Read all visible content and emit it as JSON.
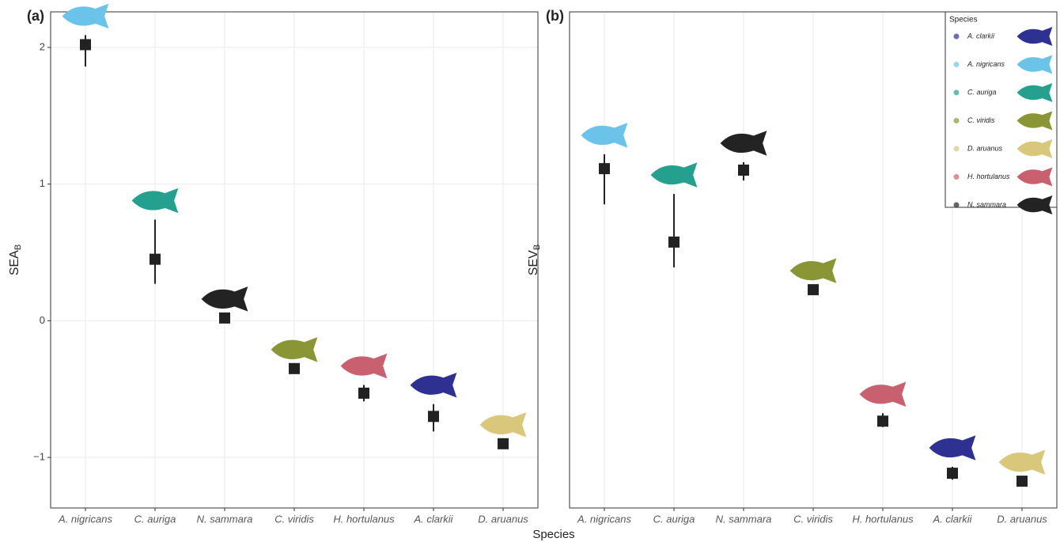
{
  "figure": {
    "xlabel": "Species"
  },
  "chart_data": [
    {
      "type": "point",
      "panel_label": "(a)",
      "ylabel": "SEA",
      "ylabel_sub": "B",
      "categories": [
        "A. nigricans",
        "C. auriga",
        "N. sammara",
        "C. viridis",
        "H. hortulanus",
        "A. clarkii",
        "D. aruanus"
      ],
      "values": [
        2.02,
        0.45,
        0.02,
        -0.35,
        -0.53,
        -0.7,
        -0.9
      ],
      "error_low": [
        1.86,
        0.27,
        null,
        null,
        -0.59,
        -0.81,
        null
      ],
      "error_high": [
        2.09,
        0.74,
        null,
        null,
        -0.47,
        -0.61,
        null
      ],
      "fish_colors": [
        "#6cc3ea",
        "#25a08f",
        "#232323",
        "#8a9535",
        "#c9606f",
        "#2e3192",
        "#d9c87c"
      ],
      "ylim": [
        -1.37,
        2.26
      ],
      "yticks": [
        {
          "value": -1,
          "label": "−1"
        },
        0,
        1,
        2
      ],
      "grid": true
    },
    {
      "type": "point",
      "panel_label": "(b)",
      "ylabel": "SEV",
      "ylabel_sub": "B",
      "categories": [
        "A. nigricans",
        "C. auriga",
        "N. sammara",
        "C. viridis",
        "H. hortulanus",
        "A. clarkii",
        "D. aruanus"
      ],
      "values": [
        68.4,
        53.6,
        68.1,
        44.0,
        17.5,
        7.0,
        5.4
      ],
      "error_low": [
        61.2,
        48.5,
        66.0,
        null,
        16.3,
        5.7,
        null
      ],
      "error_high": [
        71.3,
        63.3,
        69.7,
        null,
        19.1,
        8.3,
        null
      ],
      "fish_colors": [
        "#6cc3ea",
        "#25a08f",
        "#232323",
        "#8a9535",
        "#c9606f",
        "#2e3192",
        "#d9c87c"
      ],
      "ylim": [
        0,
        100
      ],
      "grid": true,
      "legend": {
        "title": "Species",
        "position": "top-right",
        "items": [
          {
            "name": "A. clarkii",
            "color": "#2e3192"
          },
          {
            "name": "A. nigricans",
            "color": "#6cc3ea"
          },
          {
            "name": "C. auriga",
            "color": "#25a08f"
          },
          {
            "name": "C. viridis",
            "color": "#8a9535"
          },
          {
            "name": "D. aruanus",
            "color": "#d9c87c"
          },
          {
            "name": "H. hortulanus",
            "color": "#c9606f"
          },
          {
            "name": "N. sammara",
            "color": "#232323"
          }
        ]
      }
    }
  ]
}
